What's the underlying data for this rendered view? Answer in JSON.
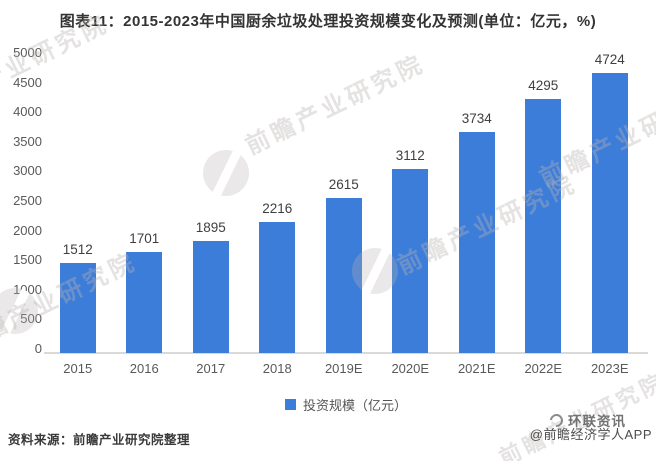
{
  "title": "图表11：2015-2023年中国厨余垃圾处理投资规模变化及预测(单位：亿元，%)",
  "chart_data": {
    "type": "bar",
    "categories": [
      "2015",
      "2016",
      "2017",
      "2018",
      "2019E",
      "2020E",
      "2021E",
      "2022E",
      "2023E"
    ],
    "values": [
      1512,
      1701,
      1895,
      2216,
      2615,
      3112,
      3734,
      4295,
      4724
    ],
    "series_name": "投资规模（亿元）",
    "title": "图表11：2015-2023年中国厨余垃圾处理投资规模变化及预测(单位：亿元，%)",
    "xlabel": "",
    "ylabel": "",
    "ylim": [
      0,
      5000
    ],
    "ytick_step": 500,
    "grid": false,
    "legend_position": "bottom",
    "bar_color": "#3c7dd9",
    "tick_color": "#595959",
    "value_label_color": "#3f3f3f"
  },
  "legend": {
    "label": "投资规模（亿元）"
  },
  "watermark": {
    "text": "前瞻产业研究院"
  },
  "footer": {
    "source": "资料来源：前瞻产业研究院整理",
    "overlay": "环联资讯",
    "credit": "@前瞻经济学人APP"
  }
}
